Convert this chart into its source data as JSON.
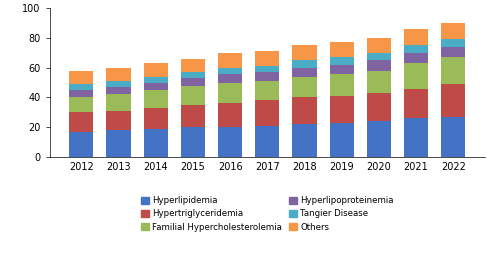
{
  "years": [
    2012,
    2013,
    2014,
    2015,
    2016,
    2017,
    2018,
    2019,
    2020,
    2021,
    2022
  ],
  "segments": {
    "Hyperlipidemia": [
      17,
      18,
      19,
      20,
      20,
      21,
      22,
      23,
      24,
      26,
      27
    ],
    "Hypertriglyceridemia": [
      13,
      13,
      14,
      15,
      16,
      17,
      18,
      18,
      19,
      20,
      22
    ],
    "Familial Hypercholesterolemia": [
      10,
      11,
      12,
      13,
      14,
      13,
      14,
      15,
      15,
      17,
      18
    ],
    "Hyperlipoproteinemia": [
      5,
      5,
      5,
      5,
      6,
      6,
      6,
      6,
      7,
      7,
      7
    ],
    "Tangier Disease": [
      4,
      4,
      4,
      4,
      4,
      4,
      5,
      5,
      5,
      5,
      5
    ],
    "Others": [
      9,
      9,
      9,
      9,
      10,
      10,
      10,
      10,
      10,
      11,
      11
    ]
  },
  "colors": {
    "Hyperlipidemia": "#4472C4",
    "Hypertriglyceridemia": "#BE4B48",
    "Familial Hypercholesterolemia": "#9BBB59",
    "Hyperlipoproteinemia": "#8064A2",
    "Tangier Disease": "#4BACC6",
    "Others": "#F79646"
  },
  "ylim": [
    0,
    100
  ],
  "yticks": [
    0,
    20,
    40,
    60,
    80,
    100
  ],
  "background_color": "#ffffff",
  "bar_width": 0.65,
  "legend_order": [
    "Hyperlipidemia",
    "Hypertriglyceridemia",
    "Familial Hypercholesterolemia",
    "Hyperlipoproteinemia",
    "Tangier Disease",
    "Others"
  ]
}
